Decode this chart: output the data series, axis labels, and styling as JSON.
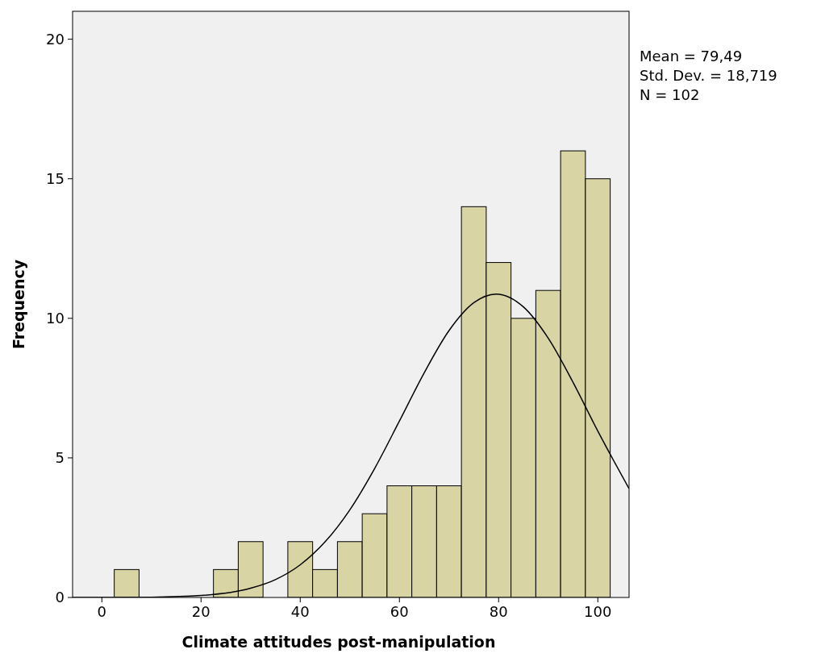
{
  "chart_data": {
    "type": "histogram",
    "xlabel": "Climate attitudes post-manipulation",
    "ylabel": "Frequency",
    "annotations": [
      "Mean = 79,49",
      "Std. Dev. = 18,719",
      "N = 102"
    ],
    "xlim": [
      -5.9,
      106.3
    ],
    "ylim": [
      0,
      21
    ],
    "xticks": [
      0,
      20,
      40,
      60,
      80,
      100
    ],
    "yticks": [
      0,
      5,
      10,
      15,
      20
    ],
    "grid": false,
    "series": [
      {
        "color": "#d8d4a4",
        "bins": [
          2.5,
          7.5,
          12.5,
          17.5,
          22.5,
          27.5,
          32.5,
          37.5,
          42.5,
          47.5,
          52.5,
          57.5,
          62.5,
          67.5,
          72.5,
          77.5,
          82.5,
          87.5,
          92.5,
          97.5,
          102.5
        ],
        "values": [
          1,
          0,
          0,
          0,
          1,
          2,
          0,
          2,
          1,
          2,
          3,
          4,
          4,
          4,
          14,
          12,
          10,
          11,
          16,
          15
        ]
      },
      {
        "type": "line",
        "color": "#000000",
        "marker": "none",
        "x": [
          -5.9,
          0,
          10,
          20,
          30,
          35,
          40,
          45,
          50,
          55,
          60,
          65,
          70,
          75,
          79.49,
          85,
          90,
          95,
          100,
          106.3
        ],
        "values": [
          0,
          0,
          0.01,
          0.07,
          0.33,
          0.64,
          1.17,
          1.99,
          3.14,
          4.62,
          6.32,
          8.05,
          9.56,
          10.56,
          10.87,
          10.41,
          9.29,
          7.71,
          5.96,
          3.9
        ]
      }
    ]
  }
}
